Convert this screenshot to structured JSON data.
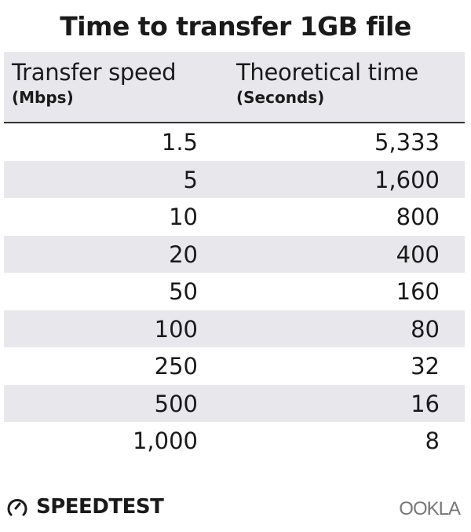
{
  "title": "Time to transfer 1GB file",
  "chart_data": {
    "type": "table",
    "title": "Time to transfer 1GB file",
    "columns": [
      {
        "label": "Transfer speed",
        "unit": "(Mbps)"
      },
      {
        "label": "Theoretical time",
        "unit": "(Seconds)"
      }
    ],
    "rows": [
      [
        "1.5",
        "5,333"
      ],
      [
        "5",
        "1,600"
      ],
      [
        "10",
        "800"
      ],
      [
        "20",
        "400"
      ],
      [
        "50",
        "160"
      ],
      [
        "100",
        "80"
      ],
      [
        "250",
        "32"
      ],
      [
        "500",
        "16"
      ],
      [
        "1,000",
        "8"
      ]
    ],
    "colors": {
      "stripe": "#e8e8ec",
      "header_rule": "#333333"
    }
  },
  "footer": {
    "left_logo": "SPEEDTEST",
    "right_logo": "OOKLA"
  }
}
